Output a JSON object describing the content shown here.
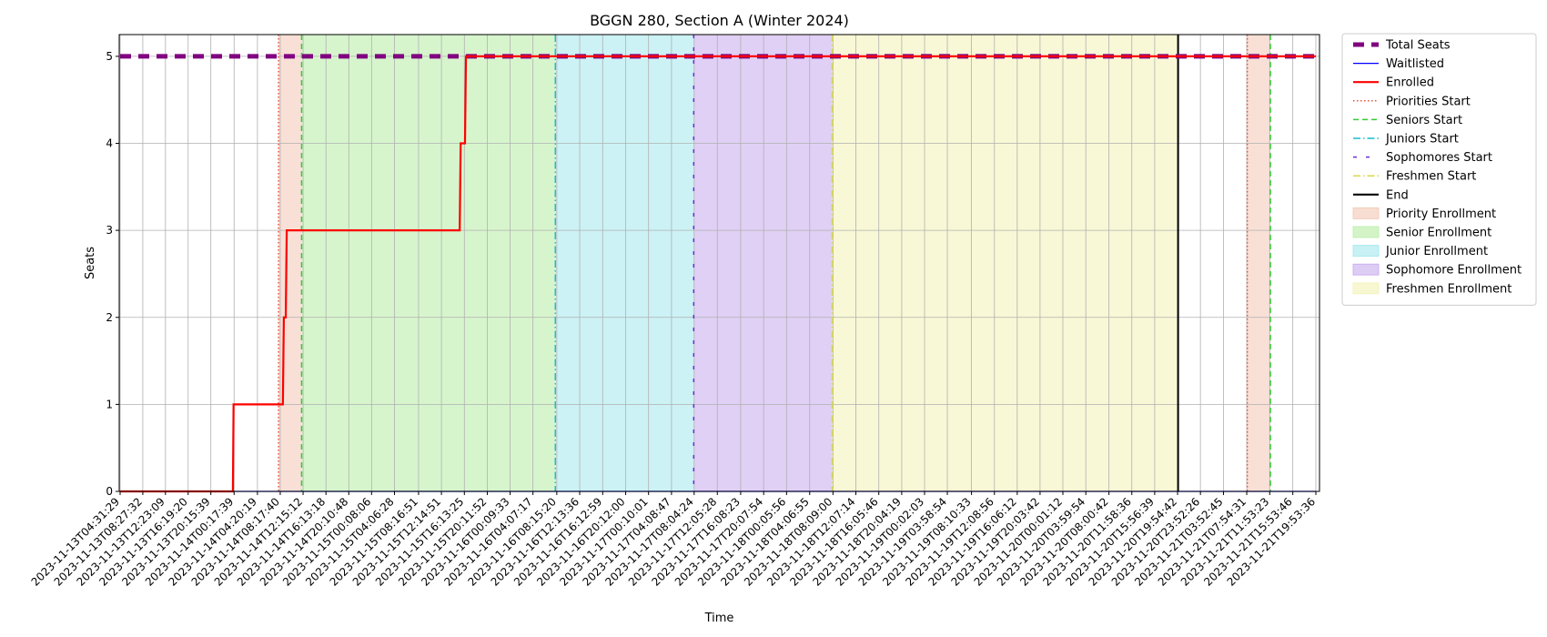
{
  "chart_data": {
    "type": "line",
    "title": "BGGN 280, Section A (Winter 2024)",
    "xlabel": "Time",
    "ylabel": "Seats",
    "ylim": [
      0,
      5.25
    ],
    "yticks": [
      0,
      1,
      2,
      3,
      4,
      5
    ],
    "grid": true,
    "legend_position": "outside-right",
    "categories": [
      "2023-11-13T04:31:29",
      "2023-11-13T08:27:32",
      "2023-11-13T12:23:09",
      "2023-11-13T16:19:20",
      "2023-11-13T20:15:39",
      "2023-11-14T00:17:39",
      "2023-11-14T04:20:19",
      "2023-11-14T08:17:40",
      "2023-11-14T12:15:12",
      "2023-11-14T16:13:18",
      "2023-11-14T20:10:48",
      "2023-11-15T00:08:06",
      "2023-11-15T04:06:28",
      "2023-11-15T08:16:51",
      "2023-11-15T12:14:51",
      "2023-11-15T16:13:25",
      "2023-11-15T20:11:52",
      "2023-11-16T00:09:33",
      "2023-11-16T04:07:17",
      "2023-11-16T08:15:20",
      "2023-11-16T12:13:36",
      "2023-11-16T16:12:59",
      "2023-11-16T20:12:00",
      "2023-11-17T00:10:01",
      "2023-11-17T04:08:47",
      "2023-11-17T08:04:24",
      "2023-11-17T12:05:28",
      "2023-11-17T16:08:23",
      "2023-11-17T20:07:54",
      "2023-11-18T00:05:56",
      "2023-11-18T04:06:55",
      "2023-11-18T08:09:00",
      "2023-11-18T12:07:14",
      "2023-11-18T16:05:46",
      "2023-11-18T20:04:19",
      "2023-11-19T00:02:03",
      "2023-11-19T03:58:54",
      "2023-11-19T08:10:33",
      "2023-11-19T12:08:56",
      "2023-11-19T16:06:12",
      "2023-11-19T20:03:42",
      "2023-11-20T00:01:12",
      "2023-11-20T03:59:54",
      "2023-11-20T08:00:42",
      "2023-11-20T11:58:36",
      "2023-11-20T15:56:39",
      "2023-11-20T19:54:42",
      "2023-11-20T23:52:26",
      "2023-11-21T03:52:45",
      "2023-11-21T07:54:31",
      "2023-11-21T11:53:23",
      "2023-11-21T15:53:46",
      "2023-11-21T19:53:36"
    ],
    "series": [
      {
        "name": "Total Seats",
        "style": "dashed-thick",
        "color": "#800080",
        "points": [
          [
            "2023-11-13T04:31:29",
            5
          ],
          [
            "2023-11-21T19:53:36",
            5
          ]
        ]
      },
      {
        "name": "Waitlisted",
        "style": "solid-thin",
        "color": "#0000ff",
        "points": [
          [
            "2023-11-13T04:31:29",
            0
          ],
          [
            "2023-11-21T19:53:36",
            0
          ]
        ]
      },
      {
        "name": "Enrolled",
        "style": "solid",
        "color": "#ff0000",
        "points": [
          [
            "2023-11-13T04:31:29",
            0
          ],
          [
            "2023-11-14T00:05:00",
            0
          ],
          [
            "2023-11-14T00:12:00",
            1
          ],
          [
            "2023-11-14T08:45:00",
            1
          ],
          [
            "2023-11-14T08:55:00",
            2
          ],
          [
            "2023-11-14T09:15:00",
            2
          ],
          [
            "2023-11-14T09:25:00",
            3
          ],
          [
            "2023-11-15T15:25:00",
            3
          ],
          [
            "2023-11-15T15:35:00",
            4
          ],
          [
            "2023-11-15T16:20:00",
            4
          ],
          [
            "2023-11-15T16:30:00",
            5
          ],
          [
            "2023-11-21T19:53:36",
            5
          ]
        ]
      }
    ],
    "phases": [
      {
        "name": "Priority Enrollment",
        "start": "2023-11-14T08:00:00",
        "end": "2023-11-14T12:00:00",
        "color": "#f4c7b4"
      },
      {
        "name": "Senior Enrollment",
        "start": "2023-11-14T12:00:00",
        "end": "2023-11-16T08:00:00",
        "color": "#b7eda4"
      },
      {
        "name": "Junior Enrollment",
        "start": "2023-11-16T08:00:00",
        "end": "2023-11-17T08:00:00",
        "color": "#a2e8ec"
      },
      {
        "name": "Sophomore Enrollment",
        "start": "2023-11-17T08:00:00",
        "end": "2023-11-18T08:00:00",
        "color": "#c7aaed"
      },
      {
        "name": "Freshmen Enrollment",
        "start": "2023-11-18T08:00:00",
        "end": "2023-11-20T20:00:00",
        "color": "#f2f2b4"
      },
      {
        "name": "Priority Enrollment",
        "start": "2023-11-21T08:00:00",
        "end": "2023-11-21T12:00:00",
        "color": "#f4c7b4"
      }
    ],
    "markers": [
      {
        "name": "Priorities Start",
        "at": "2023-11-14T08:00:00",
        "style": "dotted",
        "color": "#e8543b"
      },
      {
        "name": "Seniors Start",
        "at": "2023-11-14T12:00:00",
        "style": "dashed",
        "color": "#33cc33"
      },
      {
        "name": "Juniors Start",
        "at": "2023-11-16T08:00:00",
        "style": "dashdot",
        "color": "#17becf"
      },
      {
        "name": "Sophomores Start",
        "at": "2023-11-17T08:00:00",
        "style": "loosedash",
        "color": "#6a2fd6"
      },
      {
        "name": "Freshmen Start",
        "at": "2023-11-18T08:00:00",
        "style": "dashdot",
        "color": "#d8d84a"
      },
      {
        "name": "End",
        "at": "2023-11-20T20:00:00",
        "style": "solid",
        "color": "#000000"
      },
      {
        "name": "",
        "at": "2023-11-21T08:00:00",
        "style": "dotted",
        "color": "#e8543b"
      },
      {
        "name": "",
        "at": "2023-11-21T12:00:00",
        "style": "dashed",
        "color": "#33cc33"
      }
    ],
    "legend": [
      {
        "label": "Total Seats",
        "kind": "line",
        "style": "dashed-thick",
        "color": "#800080"
      },
      {
        "label": "Waitlisted",
        "kind": "line",
        "style": "solid-thin",
        "color": "#0000ff"
      },
      {
        "label": "Enrolled",
        "kind": "line",
        "style": "solid",
        "color": "#ff0000"
      },
      {
        "label": "Priorities Start",
        "kind": "line",
        "style": "dotted",
        "color": "#e8543b"
      },
      {
        "label": "Seniors Start",
        "kind": "line",
        "style": "dashed",
        "color": "#33cc33"
      },
      {
        "label": "Juniors Start",
        "kind": "line",
        "style": "dashdot",
        "color": "#17becf"
      },
      {
        "label": "Sophomores Start",
        "kind": "line",
        "style": "loosedash",
        "color": "#6a2fd6"
      },
      {
        "label": "Freshmen Start",
        "kind": "line",
        "style": "dashdot",
        "color": "#d8d84a"
      },
      {
        "label": "End",
        "kind": "line",
        "style": "solid",
        "color": "#000000"
      },
      {
        "label": "Priority Enrollment",
        "kind": "patch",
        "color": "#f4c7b4"
      },
      {
        "label": "Senior Enrollment",
        "kind": "patch",
        "color": "#b7eda4"
      },
      {
        "label": "Junior Enrollment",
        "kind": "patch",
        "color": "#a2e8ec"
      },
      {
        "label": "Sophomore Enrollment",
        "kind": "patch",
        "color": "#c7aaed"
      },
      {
        "label": "Freshmen Enrollment",
        "kind": "patch",
        "color": "#f2f2b4"
      }
    ]
  }
}
